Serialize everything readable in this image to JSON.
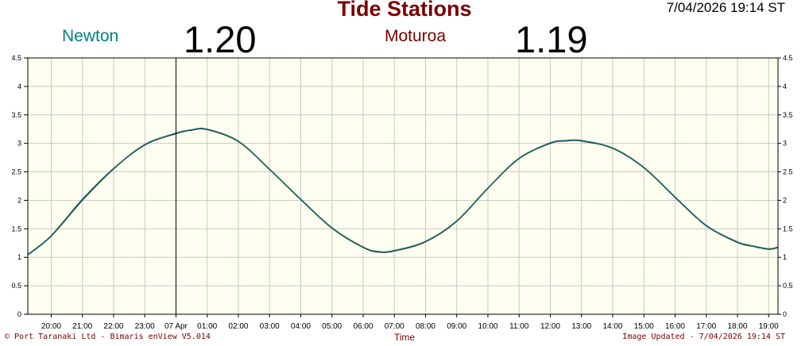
{
  "header": {
    "title": "Tide Stations",
    "timestamp": "7/04/2026 19:14 ST"
  },
  "stations": [
    {
      "name": "Newton",
      "value": "1.20"
    },
    {
      "name": "Moturoa",
      "value": "1.19"
    }
  ],
  "footer": {
    "left": "© Port Taranaki Ltd - Bimaris enView V5.014",
    "right": "Image Updated - 7/04/2026 19:14 ST"
  },
  "colors": {
    "title": "#7a0000",
    "newton": "#008080",
    "moturoa": "#7a0000",
    "plot_bg": "#fffff0",
    "grid": "#c8c8c8"
  },
  "chart_data": {
    "type": "line",
    "title": "Tide Stations",
    "xlabel": "Time",
    "ylabel": "",
    "ylim": [
      0,
      4.5
    ],
    "yticks": [
      "0",
      "0.5",
      "1",
      "1.5",
      "2",
      "2.5",
      "3",
      "3.5",
      "4",
      "4.5"
    ],
    "xlim_hours": [
      19.25,
      43.3
    ],
    "xticks": [
      {
        "hour": 20,
        "label": "20:00"
      },
      {
        "hour": 21,
        "label": "21:00"
      },
      {
        "hour": 22,
        "label": "22:00"
      },
      {
        "hour": 23,
        "label": "23:00"
      },
      {
        "hour": 24,
        "label": "07 Apr"
      },
      {
        "hour": 25,
        "label": "01:00"
      },
      {
        "hour": 26,
        "label": "02:00"
      },
      {
        "hour": 27,
        "label": "03:00"
      },
      {
        "hour": 28,
        "label": "04:00"
      },
      {
        "hour": 29,
        "label": "05:00"
      },
      {
        "hour": 30,
        "label": "06:00"
      },
      {
        "hour": 31,
        "label": "07:00"
      },
      {
        "hour": 32,
        "label": "08:00"
      },
      {
        "hour": 33,
        "label": "09:00"
      },
      {
        "hour": 34,
        "label": "10:00"
      },
      {
        "hour": 35,
        "label": "11:00"
      },
      {
        "hour": 36,
        "label": "12:00"
      },
      {
        "hour": 37,
        "label": "13:00"
      },
      {
        "hour": 38,
        "label": "14:00"
      },
      {
        "hour": 39,
        "label": "15:00"
      },
      {
        "hour": 40,
        "label": "16:00"
      },
      {
        "hour": 41,
        "label": "17:00"
      },
      {
        "hour": 42,
        "label": "18:00"
      },
      {
        "hour": 43,
        "label": "19:00"
      }
    ],
    "grid": true,
    "day_marker_hour": 24,
    "series": [
      {
        "name": "Newton",
        "x": [
          19.25,
          20.0,
          21.0,
          22.0,
          23.0,
          24.0,
          24.5,
          25.0,
          26.0,
          27.0,
          28.0,
          29.0,
          30.0,
          30.5,
          31.0,
          32.0,
          33.0,
          34.0,
          35.0,
          36.0,
          36.5,
          37.0,
          38.0,
          39.0,
          40.0,
          41.0,
          42.0,
          42.5,
          43.0,
          43.3
        ],
        "y": [
          1.05,
          1.38,
          2.02,
          2.56,
          2.98,
          3.18,
          3.24,
          3.25,
          3.04,
          2.55,
          2.02,
          1.52,
          1.18,
          1.1,
          1.12,
          1.28,
          1.64,
          2.22,
          2.74,
          3.01,
          3.05,
          3.05,
          2.92,
          2.58,
          2.06,
          1.56,
          1.27,
          1.2,
          1.15,
          1.18
        ]
      },
      {
        "name": "Moturoa",
        "x": [
          19.25,
          20.0,
          21.0,
          22.0,
          23.0,
          24.0,
          24.5,
          25.0,
          26.0,
          27.0,
          28.0,
          29.0,
          30.0,
          30.5,
          31.0,
          32.0,
          33.0,
          34.0,
          35.0,
          36.0,
          36.5,
          37.0,
          38.0,
          39.0,
          40.0,
          41.0,
          42.0,
          42.5,
          43.0,
          43.3
        ],
        "y": [
          1.04,
          1.37,
          2.0,
          2.55,
          2.97,
          3.17,
          3.23,
          3.24,
          3.03,
          2.54,
          2.01,
          1.51,
          1.17,
          1.09,
          1.11,
          1.27,
          1.63,
          2.21,
          2.73,
          3.0,
          3.04,
          3.04,
          2.91,
          2.57,
          2.05,
          1.55,
          1.26,
          1.19,
          1.14,
          1.17
        ]
      }
    ]
  }
}
